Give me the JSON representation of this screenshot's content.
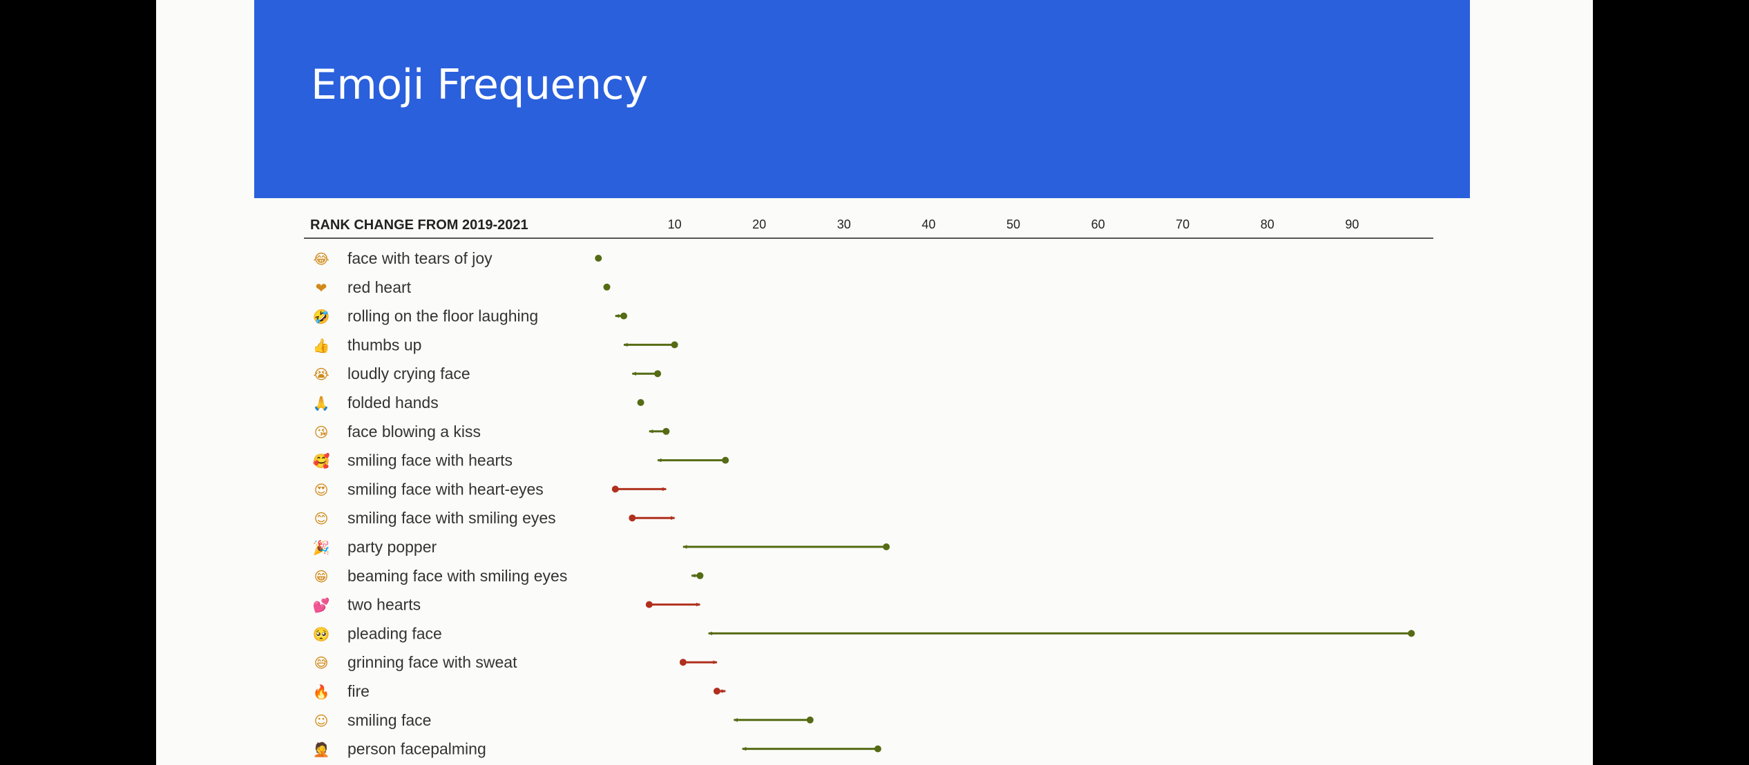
{
  "slide": {
    "title": "Emoji Frequency"
  },
  "chart_data": {
    "type": "arrow-range",
    "axis_title": "RANK CHANGE FROM 2019-2021",
    "xticks": [
      10,
      20,
      30,
      40,
      50,
      60,
      70,
      80,
      90
    ],
    "colors": {
      "improved": "#556b14",
      "declined": "#b0301e",
      "axis": "#555555"
    },
    "rows": [
      {
        "emoji": "😂",
        "icon": "face-with-tears-of-joy-icon",
        "label": "face with tears of joy",
        "from": 1,
        "to": 1
      },
      {
        "emoji": "❤",
        "icon": "red-heart-icon",
        "label": "red heart",
        "from": 2,
        "to": 2
      },
      {
        "emoji": "🤣",
        "icon": "rolling-on-the-floor-laughing-icon",
        "label": "rolling on the floor laughing",
        "from": 4,
        "to": 3
      },
      {
        "emoji": "👍",
        "icon": "thumbs-up-icon",
        "label": "thumbs up",
        "from": 10,
        "to": 4
      },
      {
        "emoji": "😭",
        "icon": "loudly-crying-face-icon",
        "label": "loudly crying face",
        "from": 8,
        "to": 5
      },
      {
        "emoji": "🙏",
        "icon": "folded-hands-icon",
        "label": "folded hands",
        "from": 6,
        "to": 6
      },
      {
        "emoji": "😘",
        "icon": "face-blowing-a-kiss-icon",
        "label": "face blowing a kiss",
        "from": 9,
        "to": 7
      },
      {
        "emoji": "🥰",
        "icon": "smiling-face-with-hearts-icon",
        "label": "smiling face with hearts",
        "from": 16,
        "to": 8
      },
      {
        "emoji": "😍",
        "icon": "smiling-face-with-heart-eyes-icon",
        "label": "smiling face with heart-eyes",
        "from": 3,
        "to": 9
      },
      {
        "emoji": "😊",
        "icon": "smiling-face-with-smiling-eyes-icon",
        "label": "smiling face with smiling eyes",
        "from": 5,
        "to": 10
      },
      {
        "emoji": "🎉",
        "icon": "party-popper-icon",
        "label": "party popper",
        "from": 35,
        "to": 11
      },
      {
        "emoji": "😁",
        "icon": "beaming-face-with-smiling-eyes-icon",
        "label": "beaming face with smiling eyes",
        "from": 13,
        "to": 12
      },
      {
        "emoji": "💕",
        "icon": "two-hearts-icon",
        "label": "two hearts",
        "from": 7,
        "to": 13
      },
      {
        "emoji": "🥺",
        "icon": "pleading-face-icon",
        "label": "pleading face",
        "from": 97,
        "to": 14
      },
      {
        "emoji": "😅",
        "icon": "grinning-face-with-sweat-icon",
        "label": "grinning face with sweat",
        "from": 11,
        "to": 15
      },
      {
        "emoji": "🔥",
        "icon": "fire-icon",
        "label": "fire",
        "from": 15,
        "to": 16
      },
      {
        "emoji": "☺",
        "icon": "smiling-face-icon",
        "label": "smiling face",
        "from": 26,
        "to": 17
      },
      {
        "emoji": "🤦",
        "icon": "person-facepalming-icon",
        "label": "person facepalming",
        "from": 34,
        "to": 18
      }
    ]
  }
}
